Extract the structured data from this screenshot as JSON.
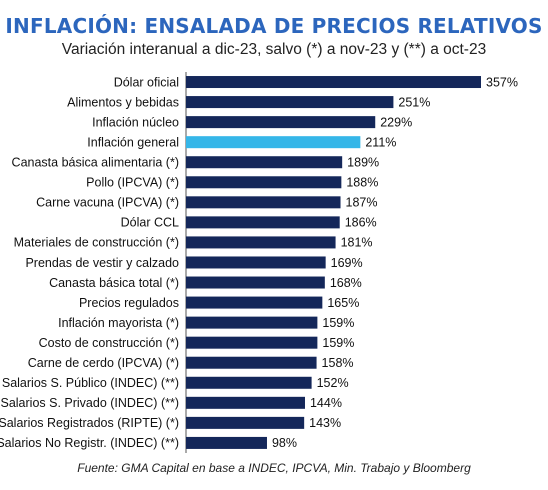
{
  "chart_data": {
    "type": "bar",
    "orientation": "horizontal",
    "title": "INFLACIÓN: ENSALADA DE PRECIOS RELATIVOS",
    "subtitle": "Variación interanual a dic-23, salvo (*) a nov-23 y (**) a oct-23",
    "categories": [
      "Dólar oficial",
      "Alimentos y bebidas",
      "Inflación núcleo",
      "Inflación general",
      "Canasta básica alimentaria (*)",
      "Pollo (IPCVA) (*)",
      "Carne vacuna (IPCVA) (*)",
      "Dólar CCL",
      "Materiales de construcción (*)",
      "Prendas de vestir y calzado",
      "Canasta básica total (*)",
      "Precios regulados",
      "Inflación mayorista (*)",
      "Costo de construcción (*)",
      "Carne de cerdo (IPCVA) (*)",
      "Salarios S. Público (INDEC) (**)",
      "Salarios S. Privado (INDEC) (**)",
      "Salarios Registrados (RIPTE) (*)",
      "Salarios No Registr. (INDEC) (**)"
    ],
    "values": [
      357,
      251,
      229,
      211,
      189,
      188,
      187,
      186,
      181,
      169,
      168,
      165,
      159,
      159,
      158,
      152,
      144,
      143,
      98
    ],
    "value_labels": [
      "357%",
      "251%",
      "229%",
      "211%",
      "189%",
      "188%",
      "187%",
      "186%",
      "181%",
      "169%",
      "168%",
      "165%",
      "159%",
      "159%",
      "158%",
      "152%",
      "144%",
      "143%",
      "98%"
    ],
    "xlim": [
      0,
      357
    ],
    "highlight_category": "Inflación general",
    "colors": {
      "bar": "#14275a",
      "highlight": "#35b6e8",
      "axis": "#555555",
      "title": "#2c66bd"
    },
    "grid": false,
    "legend": "none"
  },
  "source": "Fuente: GMA Capital en base a INDEC, IPCVA, Min. Trabajo y Bloomberg"
}
